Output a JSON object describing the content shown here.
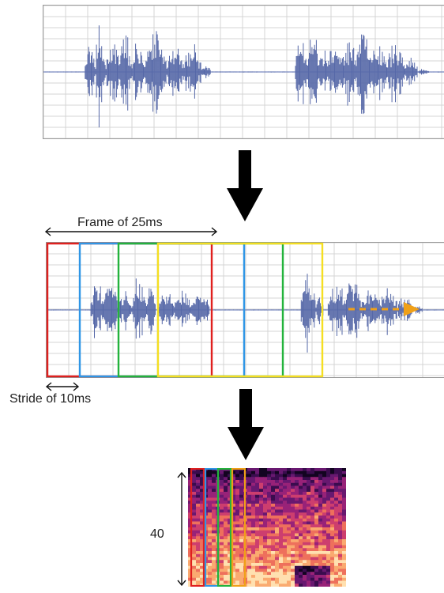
{
  "labels": {
    "frame": "Frame of 25ms",
    "stride": "Stride of 10ms",
    "feature_count": "40"
  },
  "colors": {
    "waveform": "#5668a8",
    "frame_red": "#e0201e",
    "frame_blue": "#2f96e6",
    "frame_green": "#23b33c",
    "frame_yellow": "#f5df21",
    "frame_orange": "#f0a018",
    "arrow": "#000000",
    "grid": "#d4d4d4"
  },
  "icons": {
    "down_arrow": "down-arrow-icon",
    "dashed_right_arrow": "dashed-right-arrow-icon",
    "double_arrow": "double-arrow-icon"
  }
}
